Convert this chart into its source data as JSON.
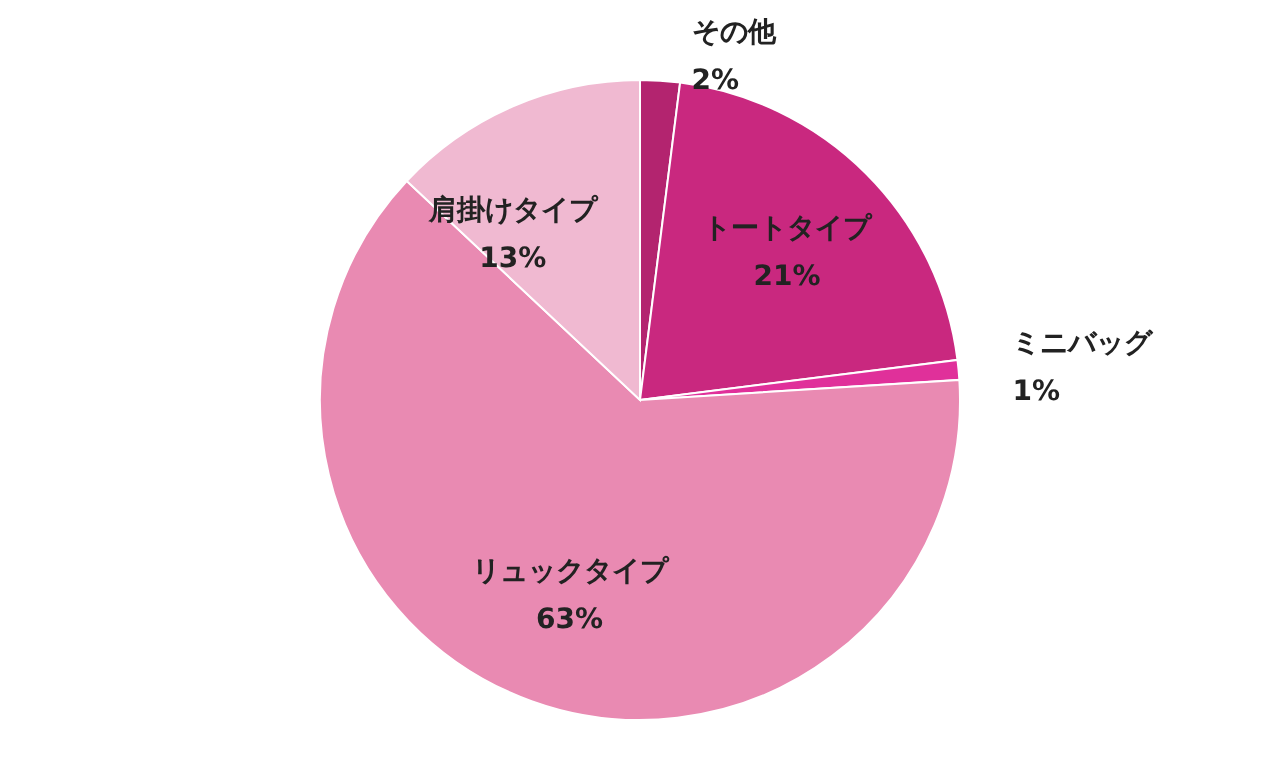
{
  "chart_data": {
    "type": "pie",
    "categories": [
      "その他",
      "トートタイプ",
      "ミニバッグ",
      "リュックタイプ",
      "肩掛けタイプ"
    ],
    "values": [
      2,
      21,
      1,
      63,
      13
    ],
    "value_labels": [
      "2%",
      "21%",
      "1%",
      "63%",
      "13%"
    ],
    "colors": [
      "#b3246f",
      "#c9287f",
      "#e0309a",
      "#e98ab2",
      "#f0b9d1"
    ]
  }
}
